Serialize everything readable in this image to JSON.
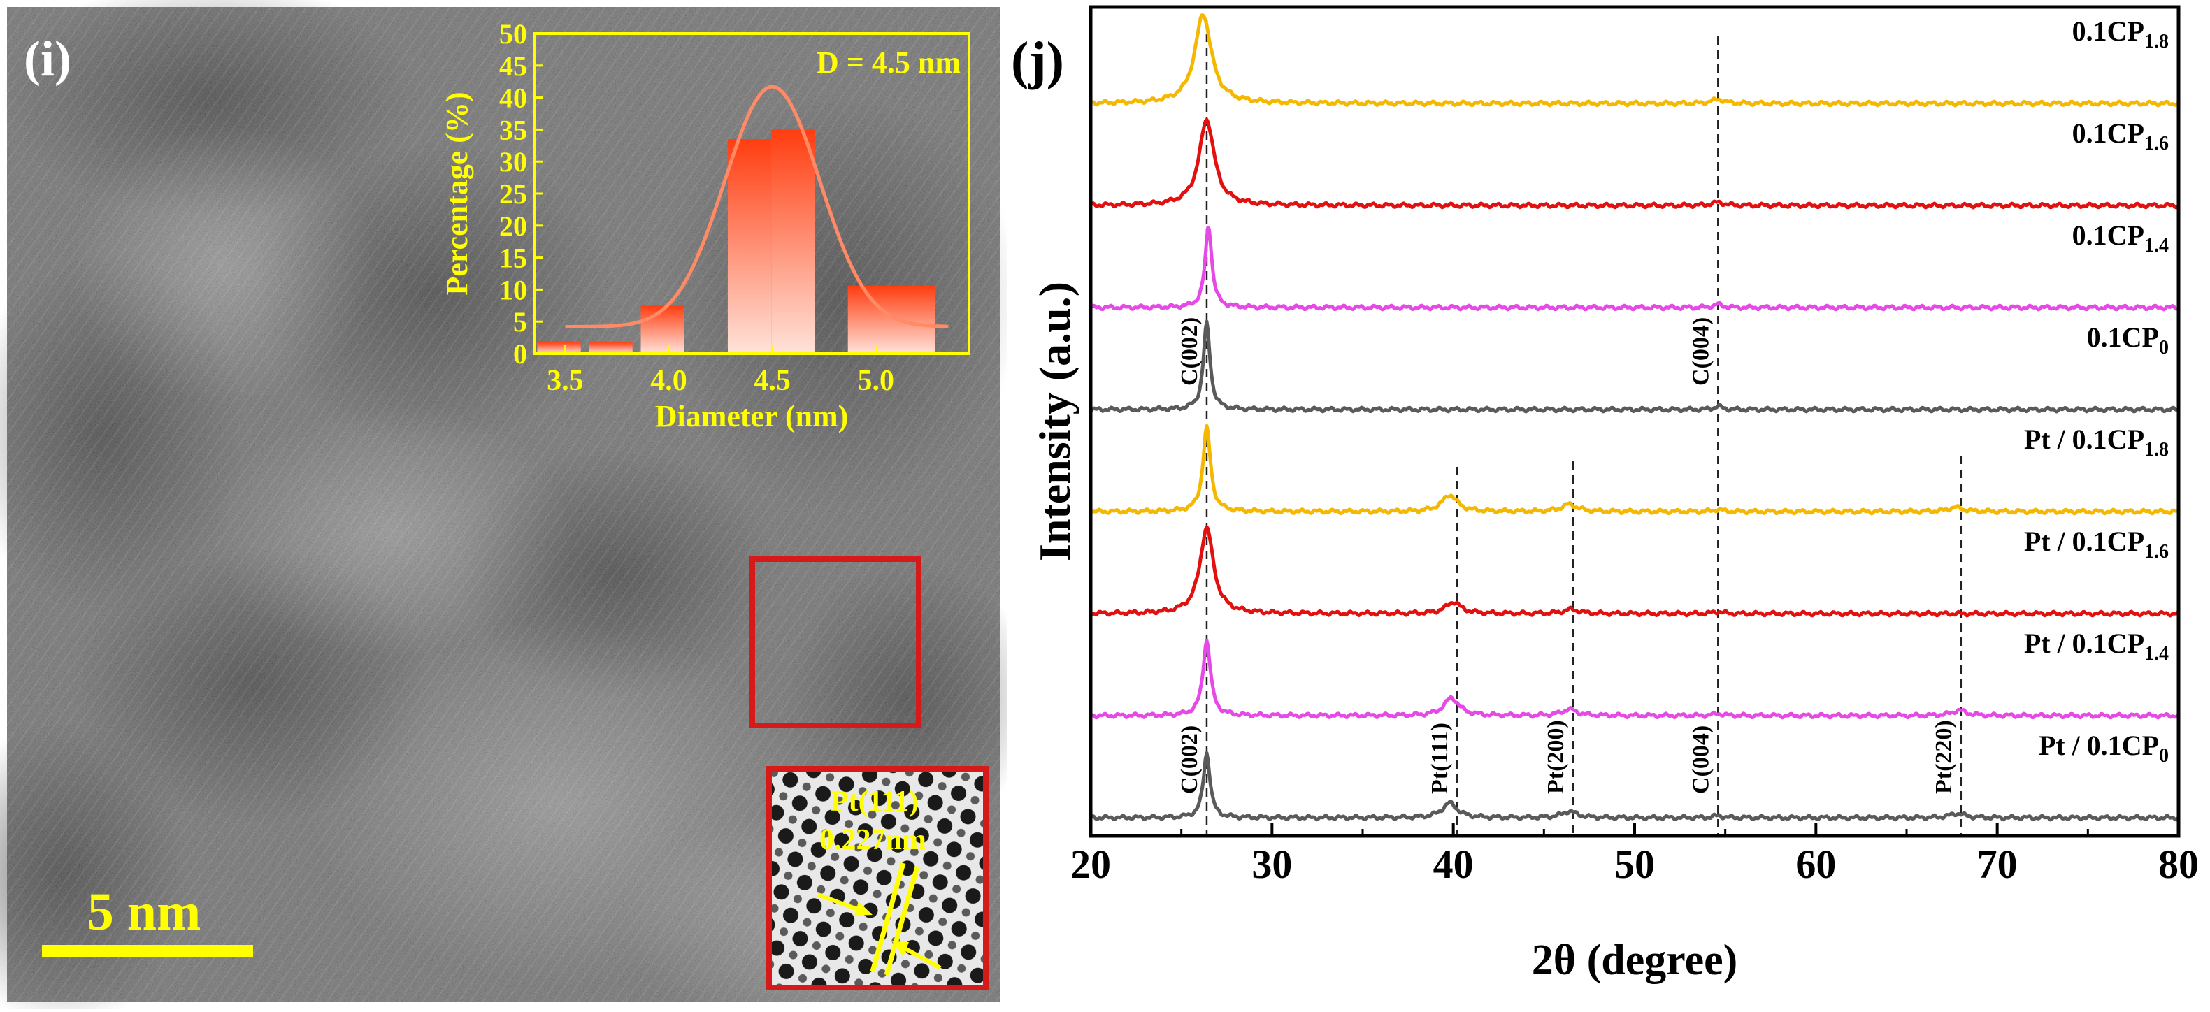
{
  "panel_i": {
    "label": "(i)",
    "scale_bar": "5 nm",
    "inset_zoom": {
      "plane": "Pt(111)",
      "spacing": "0.227nm"
    },
    "colors": {
      "label_yellow": "#ffff00",
      "roi_red": "#d61a1a"
    }
  },
  "panel_j": {
    "label": "(j)",
    "colors": {
      "gold": "#f5b800",
      "red": "#e31010",
      "magenta": "#e64ae6",
      "gray": "#5a5a5a"
    }
  },
  "chart_data": [
    {
      "type": "bar",
      "title": "D = 4.5 nm",
      "xlabel": "Diameter (nm)",
      "ylabel": "Percentage (%)",
      "xlim": [
        3.35,
        5.45
      ],
      "ylim": [
        0,
        50
      ],
      "xticks": [
        3.5,
        4.0,
        4.5,
        5.0
      ],
      "xtick_labels": [
        "3.5",
        "4.0",
        "4.5",
        "5.0"
      ],
      "yticks": [
        0,
        5,
        10,
        15,
        20,
        25,
        30,
        35,
        40,
        45,
        50
      ],
      "ytick_labels": [
        "0",
        "5",
        "10",
        "15",
        "20",
        "25",
        "30",
        "35",
        "40",
        "45",
        "50"
      ],
      "bin_width": 0.25,
      "bins": [
        3.5,
        3.75,
        4.0,
        4.25,
        4.5,
        4.75,
        5.0,
        5.25
      ],
      "values": [
        1.8,
        1.8,
        7.5,
        33.5,
        35.0,
        10.6,
        10.6,
        0
      ],
      "bar_centers": [
        3.47,
        3.72,
        3.97,
        4.39,
        4.6,
        4.97,
        5.18
      ],
      "bar_values": [
        1.8,
        1.8,
        7.5,
        33.5,
        35.0,
        10.6,
        10.6
      ],
      "fit": {
        "type": "gaussian",
        "mean": 4.5,
        "sigma": 0.23,
        "amplitude": 37.5,
        "baseline": 4.2
      },
      "grid": false
    },
    {
      "type": "line",
      "xlabel": "2θ (degree)",
      "ylabel": "Intensity (a.u.)",
      "xlim": [
        20,
        80
      ],
      "xticks": [
        20,
        30,
        40,
        50,
        60,
        70,
        80
      ],
      "xtick_labels": [
        "20",
        "30",
        "40",
        "50",
        "60",
        "70",
        "80"
      ],
      "reference_lines": [
        26.4,
        40.2,
        46.6,
        54.6,
        68.0
      ],
      "series": [
        {
          "name": "0.1CP",
          "sub": "1.8",
          "color": "#f5b800",
          "offset": 7.0,
          "peaks": [
            {
              "x": 26.2,
              "h": 0.85,
              "w": 0.55
            },
            {
              "x": 54.6,
              "h": 0.04,
              "w": 0.4
            }
          ]
        },
        {
          "name": "0.1CP",
          "sub": "1.6",
          "color": "#e31010",
          "offset": 6.0,
          "peaks": [
            {
              "x": 26.4,
              "h": 0.82,
              "w": 0.5
            },
            {
              "x": 54.6,
              "h": 0.03,
              "w": 0.4
            }
          ]
        },
        {
          "name": "0.1CP",
          "sub": "1.4",
          "color": "#e64ae6",
          "offset": 5.0,
          "peaks": [
            {
              "x": 26.5,
              "h": 0.78,
              "w": 0.22
            },
            {
              "x": 54.6,
              "h": 0.03,
              "w": 0.3
            }
          ]
        },
        {
          "name": "0.1CP",
          "sub": "0",
          "color": "#5a5a5a",
          "offset": 4.0,
          "peaks": [
            {
              "x": 26.4,
              "h": 0.82,
              "w": 0.22
            },
            {
              "x": 54.6,
              "h": 0.03,
              "w": 0.3
            }
          ]
        },
        {
          "name": "Pt / 0.1CP",
          "sub": "1.8",
          "color": "#f5b800",
          "offset": 3.0,
          "peaks": [
            {
              "x": 26.4,
              "h": 0.8,
              "w": 0.25
            },
            {
              "x": 39.8,
              "h": 0.16,
              "w": 0.5
            },
            {
              "x": 46.4,
              "h": 0.07,
              "w": 0.5
            },
            {
              "x": 54.6,
              "h": 0.02,
              "w": 0.3
            },
            {
              "x": 67.7,
              "h": 0.04,
              "w": 0.5
            }
          ]
        },
        {
          "name": "Pt / 0.1CP",
          "sub": "1.6",
          "color": "#e31010",
          "offset": 2.0,
          "peaks": [
            {
              "x": 26.4,
              "h": 0.82,
              "w": 0.45
            },
            {
              "x": 40.0,
              "h": 0.11,
              "w": 0.5
            },
            {
              "x": 46.5,
              "h": 0.04,
              "w": 0.5
            },
            {
              "x": 54.6,
              "h": 0.02,
              "w": 0.3
            }
          ]
        },
        {
          "name": "Pt / 0.1CP",
          "sub": "1.4",
          "color": "#e64ae6",
          "offset": 1.0,
          "peaks": [
            {
              "x": 26.4,
              "h": 0.72,
              "w": 0.25
            },
            {
              "x": 39.9,
              "h": 0.17,
              "w": 0.5
            },
            {
              "x": 46.4,
              "h": 0.06,
              "w": 0.5
            },
            {
              "x": 54.6,
              "h": 0.02,
              "w": 0.3
            },
            {
              "x": 67.9,
              "h": 0.05,
              "w": 0.5
            }
          ]
        },
        {
          "name": "Pt / 0.1CP",
          "sub": "0",
          "color": "#5a5a5a",
          "offset": 0.0,
          "peaks": [
            {
              "x": 26.4,
              "h": 0.62,
              "w": 0.22
            },
            {
              "x": 39.8,
              "h": 0.14,
              "w": 0.5
            },
            {
              "x": 46.4,
              "h": 0.06,
              "w": 0.5
            },
            {
              "x": 54.6,
              "h": 0.02,
              "w": 0.3
            },
            {
              "x": 67.8,
              "h": 0.04,
              "w": 0.5
            }
          ]
        }
      ],
      "annotations": [
        {
          "text": "C(002)",
          "x": 26.4,
          "row": 4
        },
        {
          "text": "C(004)",
          "x": 54.6,
          "row": 4
        },
        {
          "text": "C(002)",
          "x": 26.4,
          "row": 0
        },
        {
          "text": "Pt(111)",
          "x": 40.2,
          "row": 0
        },
        {
          "text": "Pt(200)",
          "x": 46.6,
          "row": 0
        },
        {
          "text": "C(004)",
          "x": 54.6,
          "row": 0
        },
        {
          "text": "Pt(220)",
          "x": 68.0,
          "row": 0
        }
      ],
      "grid": false
    }
  ]
}
